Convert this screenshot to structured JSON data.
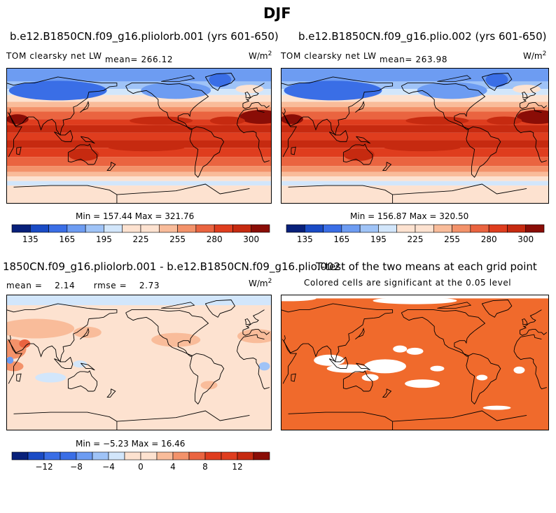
{
  "figure": {
    "season": "DJF",
    "colors": {
      "ramp": [
        "#08207a",
        "#1a4bc5",
        "#3a6ee6",
        "#6d9cf2",
        "#9fc3f7",
        "#d2e6fb",
        "#fde2d0",
        "#f9bc9a",
        "#f3926a",
        "#ea6440",
        "#df3d1e",
        "#c62a10",
        "#8a0d06"
      ],
      "land_line": "#000000",
      "ttest_fill": "#f06a2c",
      "ttest_blank": "#ffffff"
    }
  },
  "panels": {
    "p1": {
      "title": "b.e12.B1850CN.f09_g16.pliolorb.001 (yrs 601-650)",
      "variable": "TOM clearsky net LW",
      "mean_text": "mean= 266.12",
      "units_base": "W/m",
      "units_exp": "2",
      "minmax": "Min = 157.44 Max = 321.76"
    },
    "p2": {
      "title": "b.e12.B1850CN.f09_g16.plio.002 (yrs 601-650)",
      "variable": "TOM clearsky net LW",
      "mean_text": "mean= 263.98",
      "units_base": "W/m",
      "units_exp": "2",
      "minmax": "Min = 156.87 Max = 320.50"
    },
    "p3": {
      "title": "1850CN.f09_g16.pliolorb.001 - b.e12.B1850CN.f09_g16.plio.002",
      "stats_text": "mean =    2.14      rmse =    2.73",
      "units_base": "W/m",
      "units_exp": "2",
      "minmax": "Min = −5.23 Max = 16.46"
    },
    "p4": {
      "title": "T-test of the two means at each grid point",
      "subtitle": "Colored cells are significant at the 0.05 level"
    }
  },
  "chart_data": [
    {
      "type": "heatmap",
      "title": "b.e12.B1850CN.f09_g16.pliolorb.001 (yrs 601-650)",
      "variable": "TOM clearsky net LW",
      "units": "W/m2",
      "mean": 266.12,
      "min": 157.44,
      "max": 321.76,
      "colorbar_levels": [
        135,
        150,
        165,
        180,
        195,
        210,
        225,
        240,
        255,
        270,
        280,
        290,
        300
      ],
      "colorbar_ticklabels": [
        "135",
        "165",
        "195",
        "225",
        "255",
        "280",
        "300"
      ],
      "zonal_profile_approx": {
        "lat": [
          90,
          60,
          30,
          0,
          -30,
          -60,
          -90
        ],
        "value": [
          175,
          215,
          275,
          290,
          285,
          240,
          200
        ]
      }
    },
    {
      "type": "heatmap",
      "title": "b.e12.B1850CN.f09_g16.plio.002 (yrs 601-650)",
      "variable": "TOM clearsky net LW",
      "units": "W/m2",
      "mean": 263.98,
      "min": 156.87,
      "max": 320.5,
      "colorbar_levels": [
        135,
        150,
        165,
        180,
        195,
        210,
        225,
        240,
        255,
        270,
        280,
        290,
        300
      ],
      "colorbar_ticklabels": [
        "135",
        "165",
        "195",
        "225",
        "255",
        "280",
        "300"
      ],
      "zonal_profile_approx": {
        "lat": [
          90,
          60,
          30,
          0,
          -30,
          -60,
          -90
        ],
        "value": [
          172,
          212,
          272,
          288,
          283,
          238,
          198
        ]
      }
    },
    {
      "type": "heatmap",
      "title": "1850CN.f09_g16.pliolorb.001 - b.e12.B1850CN.f09_g16.plio.002",
      "units": "W/m2",
      "mean": 2.14,
      "rmse": 2.73,
      "min": -5.23,
      "max": 16.46,
      "colorbar_levels": [
        -14,
        -12,
        -10,
        -8,
        -6,
        -4,
        -2,
        0,
        2,
        4,
        6,
        8,
        10,
        12,
        14
      ],
      "colorbar_ticklabels": [
        "−12",
        "−8",
        "−4",
        "0",
        "4",
        "8",
        "12"
      ]
    },
    {
      "type": "heatmap",
      "title": "T-test of the two means at each grid point",
      "note": "Colored cells are significant at the 0.05 level",
      "significance_level": 0.05
    }
  ]
}
